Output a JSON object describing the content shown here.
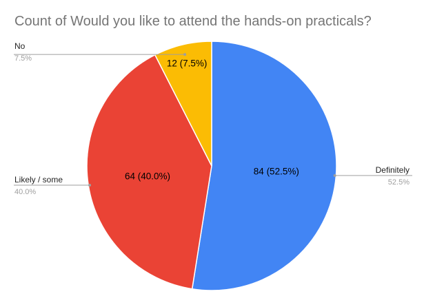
{
  "chart_data": {
    "type": "pie",
    "title": "Count of Would you like to attend the hands-on practicals?",
    "slices": [
      {
        "label": "Definitely",
        "value": 84,
        "percent": "52.5%",
        "slice_label": "84 (52.5%)",
        "color": "#4285f4"
      },
      {
        "label": "Likely / some",
        "value": 64,
        "percent": "40.0%",
        "slice_label": "64 (40.0%)",
        "color": "#ea4335"
      },
      {
        "label": "No",
        "value": 12,
        "percent": "7.5%",
        "slice_label": "12 (7.5%)",
        "color": "#fbbc04"
      }
    ],
    "legend": "none",
    "callout_color": "#9e9e9e"
  }
}
